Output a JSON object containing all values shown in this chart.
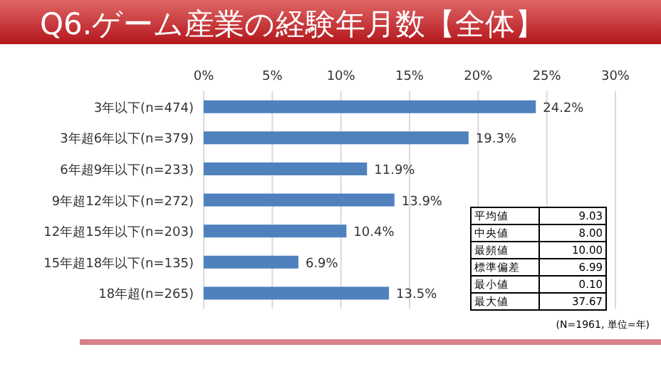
{
  "chart_data": {
    "type": "bar",
    "orientation": "horizontal",
    "title": "Q6.ゲーム産業の経験年月数【全体】",
    "categories": [
      "3年以下(n=474)",
      "3年超6年以下(n=379)",
      "6年超9年以下(n=233)",
      "9年超12年以下(n=272)",
      "12年超15年以下(n=203)",
      "15年超18年以下(n=135)",
      "18年超(n=265)"
    ],
    "values": [
      24.2,
      19.3,
      11.9,
      13.9,
      10.4,
      6.9,
      13.5
    ],
    "value_labels": [
      "24.2%",
      "19.3%",
      "11.9%",
      "13.9%",
      "10.4%",
      "6.9%",
      "13.5%"
    ],
    "color": "#4f81bd",
    "xlim": [
      0,
      30
    ],
    "xticks": [
      {
        "value": 0,
        "label": "0%"
      },
      {
        "value": 5,
        "label": "5%"
      },
      {
        "value": 10,
        "label": "10%"
      },
      {
        "value": 15,
        "label": "15%"
      },
      {
        "value": 20,
        "label": "20%"
      },
      {
        "value": 25,
        "label": "25%"
      },
      {
        "value": 30,
        "label": "30%"
      }
    ],
    "grid": "x",
    "annotations": [
      "平均値",
      "9.03",
      "中央値",
      "8.00",
      "最頻値",
      "10.00",
      "標準偏差",
      "6.99",
      "最小値",
      "0.10",
      "最大値",
      "37.67",
      "(N=1961, 単位=年)"
    ]
  }
}
